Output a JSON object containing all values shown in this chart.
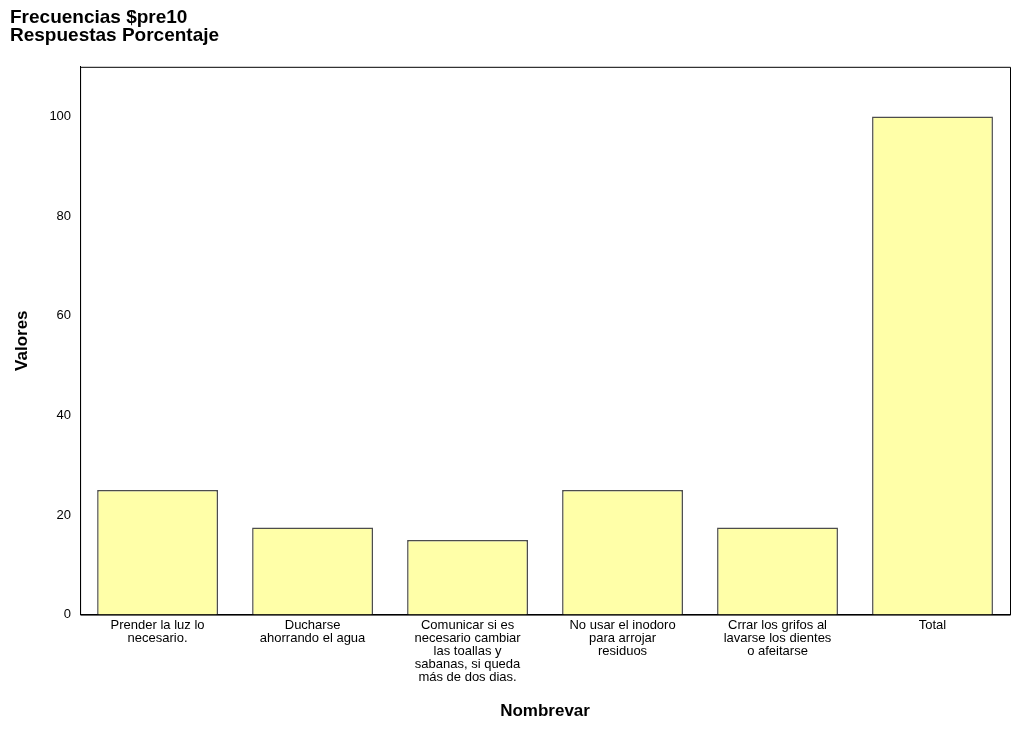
{
  "chart_data": {
    "type": "bar",
    "title": "Frecuencias $pre10",
    "subtitle": "Respuestas Porcentaje",
    "xlabel": "Nombrevar",
    "ylabel": "Valores",
    "categories": [
      "Prender la luz lo necesario.",
      "Ducharse ahorrando el agua",
      "Comunicar si es necesario cambiar las toallas y sabanas, si queda más de dos dias.",
      "No usar el inodoro para arrojar residuos",
      "Crrar los grifos al lavarse los dientes o afeitarse",
      "Total"
    ],
    "values": [
      25,
      17.5,
      15,
      25,
      17.5,
      100
    ],
    "color": "#ffffa8",
    "ylim": [
      0,
      110
    ],
    "yticks": [
      0,
      20,
      40,
      60,
      80,
      100
    ],
    "grid": false,
    "legend": false
  }
}
